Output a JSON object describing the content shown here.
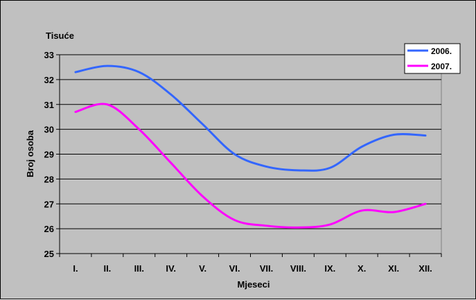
{
  "chart_data": {
    "type": "line",
    "unit_label": "Tisuće",
    "xlabel": "Mjeseci",
    "ylabel": "Broj osoba",
    "categories": [
      "I.",
      "II.",
      "III.",
      "IV.",
      "V.",
      "VI.",
      "VII.",
      "VIII.",
      "IX.",
      "X.",
      "XI.",
      "XII."
    ],
    "ylim": [
      25,
      33
    ],
    "yticks": [
      25,
      26,
      27,
      28,
      29,
      30,
      31,
      32,
      33
    ],
    "grid": true,
    "legend_position": "top-right",
    "series": [
      {
        "name": "2006.",
        "color": "#3366ff",
        "values": [
          32.3,
          32.55,
          32.3,
          31.4,
          30.2,
          29.0,
          28.5,
          28.35,
          28.45,
          29.3,
          29.78,
          29.75
        ]
      },
      {
        "name": "2007.",
        "color": "#ff00ff",
        "values": [
          30.7,
          31.0,
          30.0,
          28.65,
          27.3,
          26.35,
          26.12,
          26.05,
          26.17,
          26.73,
          26.67,
          27.0
        ]
      }
    ]
  }
}
